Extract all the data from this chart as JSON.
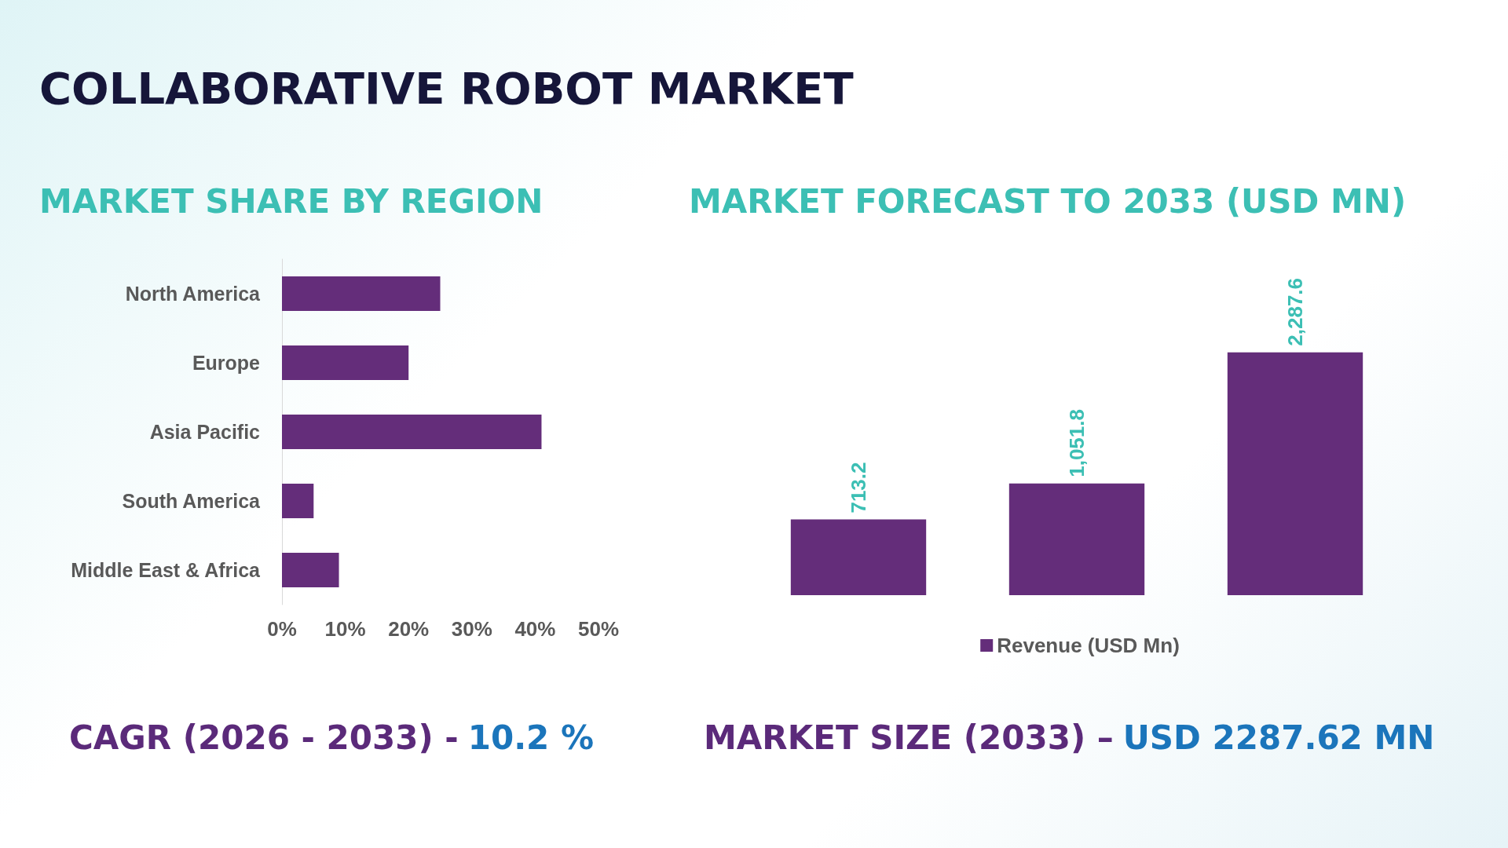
{
  "chart_data": [
    {
      "type": "bar",
      "orientation": "horizontal",
      "title": "MARKET SHARE BY REGION",
      "annotations": [
        "COLLABORATIVE ROBOT MARKET",
        "CAGR (2026 - 2033) -",
        "10.2 %"
      ],
      "categories": [
        "North America",
        "Europe",
        "Asia Pacific",
        "South America",
        "Middle East & Africa"
      ],
      "values": [
        25,
        20,
        41,
        5,
        9
      ],
      "color": "#642d7a",
      "xlim": [
        0,
        50
      ],
      "xticks": [
        {
          "value": 0,
          "label": "0%"
        },
        {
          "value": 10,
          "label": "10%"
        },
        {
          "value": 20,
          "label": "20%"
        },
        {
          "value": 30,
          "label": "30%"
        },
        {
          "value": 40,
          "label": "40%"
        },
        {
          "value": 50,
          "label": "50%"
        }
      ]
    },
    {
      "type": "bar",
      "title": "MARKET FORECAST TO 2033 (USD MN)",
      "annotations": [
        "MARKET SIZE (2033) –",
        "USD 2287.62 MN"
      ],
      "categories": [
        null,
        null,
        null
      ],
      "series": [
        {
          "name": "Revenue (USD Mn)",
          "color": "#642d7a",
          "values": [
            713.2,
            1051.8,
            2287.6
          ],
          "value_labels": [
            "713.2",
            "1,051.8",
            "2,287.6"
          ]
        }
      ],
      "legend": "bottom"
    }
  ]
}
